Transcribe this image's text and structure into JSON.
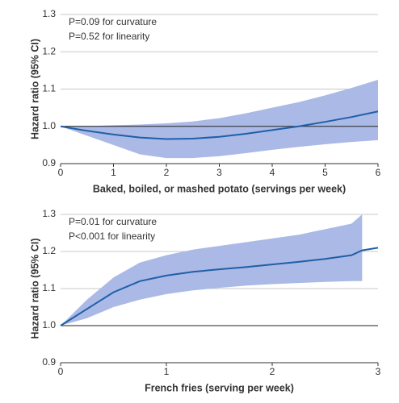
{
  "chart_data": [
    {
      "type": "line",
      "annotations": [
        "P=0.09 for curvature",
        "P=0.52 for linearity"
      ],
      "xlabel": "Baked, boiled, or mashed potato (servings per week)",
      "ylabel": "Hazard ratio (95% CI)",
      "x": [
        0,
        0.5,
        1,
        1.5,
        2,
        2.5,
        3,
        3.5,
        4,
        4.5,
        5,
        5.5,
        6
      ],
      "series": [
        {
          "color": "#1f5fa8",
          "band_color": "#aab9e6",
          "values": [
            1.0,
            0.988,
            0.978,
            0.97,
            0.966,
            0.967,
            0.972,
            0.98,
            0.99,
            1.0,
            1.012,
            1.025,
            1.04
          ],
          "lower": [
            1.0,
            0.975,
            0.95,
            0.925,
            0.915,
            0.915,
            0.92,
            0.928,
            0.937,
            0.945,
            0.952,
            0.958,
            0.963
          ],
          "upper": [
            1.0,
            1.0,
            1.003,
            1.005,
            1.008,
            1.013,
            1.022,
            1.035,
            1.05,
            1.065,
            1.083,
            1.103,
            1.125
          ]
        }
      ],
      "hline": 1,
      "xlim": [
        0,
        6
      ],
      "xticks": [
        0,
        1,
        2,
        3,
        4,
        5,
        6
      ],
      "ylim": [
        0.9,
        1.3
      ],
      "yticks": [
        0.9,
        {
          "value": 1,
          "label": "1.0"
        },
        1.1,
        1.2,
        1.3
      ],
      "grid": true
    },
    {
      "type": "line",
      "annotations": [
        "P=0.01 for curvature",
        "P<0.001 for linearity"
      ],
      "xlabel": "French fries (serving per week)",
      "ylabel": "Hazard ratio (95% CI)",
      "x": [
        0,
        0.25,
        0.5,
        0.75,
        1,
        1.25,
        1.5,
        1.75,
        2,
        2.25,
        2.5,
        2.75,
        2.85,
        3
      ],
      "series": [
        {
          "color": "#1f5fa8",
          "band_color": "#aab9e6",
          "values": [
            1.0,
            1.045,
            1.09,
            1.12,
            1.135,
            1.145,
            1.152,
            1.158,
            1.165,
            1.172,
            1.18,
            1.19,
            1.203,
            1.21
          ],
          "lower": [
            1.0,
            1.02,
            1.05,
            1.07,
            1.085,
            1.095,
            1.102,
            1.108,
            1.112,
            1.115,
            1.118,
            1.12,
            1.12,
            null
          ],
          "upper": [
            1.0,
            1.07,
            1.13,
            1.17,
            1.19,
            1.205,
            1.215,
            1.225,
            1.235,
            1.245,
            1.26,
            1.275,
            1.3,
            null
          ]
        }
      ],
      "hline": 1,
      "xlim": [
        0,
        3
      ],
      "xticks": [
        0,
        1,
        2,
        3
      ],
      "ylim": [
        0.9,
        1.3
      ],
      "yticks": [
        0.9,
        {
          "value": 1,
          "label": "1.0"
        },
        1.1,
        1.2,
        1.3
      ],
      "grid": true
    }
  ]
}
